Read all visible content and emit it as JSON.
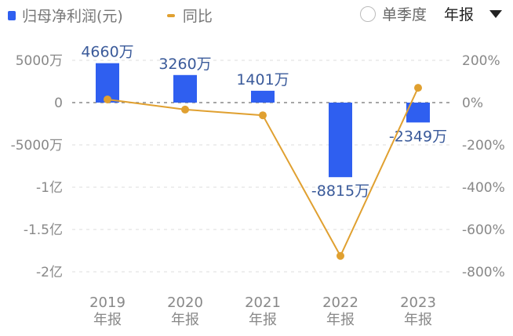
{
  "legend": {
    "bar_label": "归母净利润(元)",
    "line_label": "同比",
    "bar_color": "#2f5ff0",
    "line_color": "#e0a030"
  },
  "controls": {
    "quarterly_label": "单季度",
    "period_label": "年报"
  },
  "axes": {
    "left_ticks": [
      "5000万",
      "0",
      "-5000万",
      "-1亿",
      "-1.5亿",
      "-2亿"
    ],
    "right_ticks": [
      "200%",
      "0%",
      "-200%",
      "-400%",
      "-600%",
      "-800%"
    ],
    "x_ticks": [
      {
        "year": "2019",
        "type": "年报"
      },
      {
        "year": "2020",
        "type": "年报"
      },
      {
        "year": "2021",
        "type": "年报"
      },
      {
        "year": "2022",
        "type": "年报"
      },
      {
        "year": "2023",
        "type": "年报"
      }
    ]
  },
  "chart_data": {
    "type": "bar",
    "title": "",
    "categories": [
      "2019年报",
      "2020年报",
      "2021年报",
      "2022年报",
      "2023年报"
    ],
    "series": [
      {
        "name": "归母净利润(元)",
        "type": "bar",
        "axis": "left",
        "unit": "万",
        "values": [
          4660,
          3260,
          1401,
          -8815,
          -2349
        ],
        "labels": [
          "4660万",
          "3260万",
          "1401万",
          "-8815万",
          "-2349万"
        ]
      },
      {
        "name": "同比",
        "type": "line",
        "axis": "right",
        "unit": "%",
        "values": [
          15,
          -33,
          -60,
          -725,
          70
        ]
      }
    ],
    "ylim_left": [
      -20000,
      5000
    ],
    "ylim_right": [
      -800,
      200
    ],
    "ylabel": "",
    "xlabel": "",
    "grid": true,
    "legend_position": "top-left"
  }
}
